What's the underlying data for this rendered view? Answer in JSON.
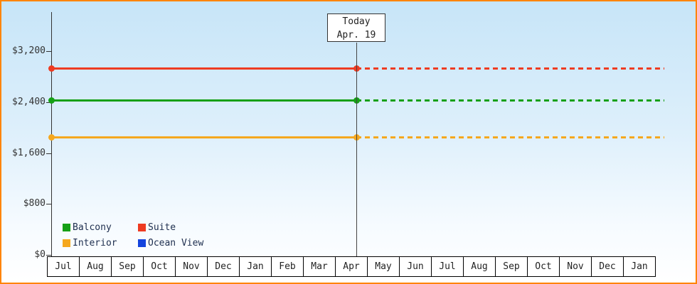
{
  "chart_data": {
    "type": "line",
    "title": "",
    "xlabel": "",
    "ylabel": "",
    "ylim": [
      0,
      3200
    ],
    "grid": false,
    "legend_position": "bottom-left",
    "y_ticks": [
      {
        "label": "$0",
        "value": 0
      },
      {
        "label": "$800",
        "value": 800
      },
      {
        "label": "$1,600",
        "value": 1600
      },
      {
        "label": "$2,400",
        "value": 2400
      },
      {
        "label": "$3,200",
        "value": 3200
      }
    ],
    "x_categories": [
      "Jul",
      "Aug",
      "Sep",
      "Oct",
      "Nov",
      "Dec",
      "Jan",
      "Feb",
      "Mar",
      "Apr",
      "May",
      "Jun",
      "Jul",
      "Aug",
      "Sep",
      "Oct",
      "Nov",
      "Dec",
      "Jan"
    ],
    "today": {
      "line1": "Today",
      "line2": "Apr. 19",
      "category": "Apr"
    },
    "series": [
      {
        "name": "Balcony",
        "color": "#16a016",
        "value": 2430,
        "style": "solid until today, dashed projection after"
      },
      {
        "name": "Suite",
        "color": "#ee3b22",
        "value": 2930,
        "style": "solid until today, dashed projection after"
      },
      {
        "name": "Interior",
        "color": "#f5a81e",
        "value": 1840,
        "style": "solid until today, dashed projection after"
      },
      {
        "name": "Ocean View",
        "color": "#1444dd",
        "value": null,
        "style": "legend only, no visible line"
      }
    ]
  }
}
